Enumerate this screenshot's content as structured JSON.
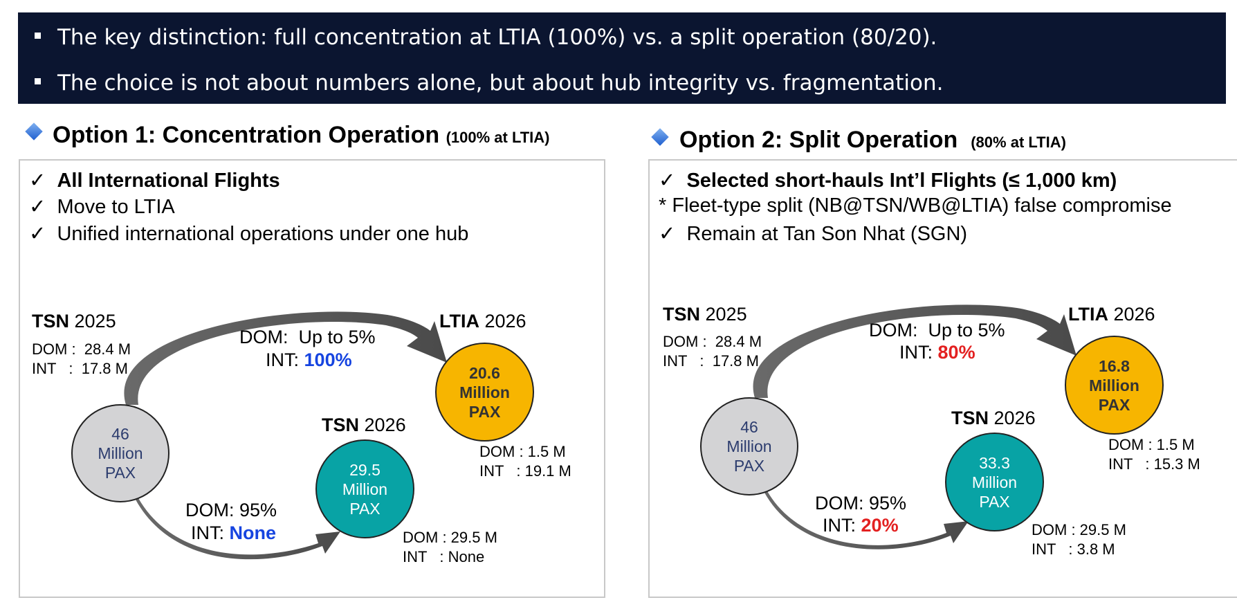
{
  "bullets": [
    "The key distinction: full concentration at LTIA (100%) vs. a split operation (80/20).",
    "The choice is not about numbers alone, but about hub integrity vs. fragmentation."
  ],
  "colors": {
    "banner": "#0b1530",
    "highlight_blue": "#1644e0",
    "highlight_red": "#e32020",
    "teal": "#08a3a5",
    "gold": "#f7b500",
    "gray": "#d3d3d5"
  },
  "option1": {
    "title": "Option 1: Concentration Operation",
    "subtitle": "(100% at LTIA)",
    "lines": [
      {
        "mark": "✓",
        "text": "All International Flights",
        "bold": true
      },
      {
        "mark": "✓",
        "text": "Move to LTIA"
      },
      {
        "mark": "✓",
        "text": "Unified international operations under one hub"
      }
    ],
    "tsn2025": {
      "name": "TSN",
      "year": "2025",
      "dom": "DOM :  28.4 M",
      "int": "INT   :  17.8 M"
    },
    "origin_circle": [
      "46",
      "Million",
      "PAX"
    ],
    "flow_top": {
      "dom": "DOM:  Up to 5%",
      "int_label": "INT:",
      "int_value": "100%"
    },
    "flow_bottom": {
      "dom": "DOM: 95%",
      "int_label": "INT:",
      "int_value": "None"
    },
    "ltia2026": {
      "name": "LTIA",
      "year": "2026",
      "circle": [
        "20.6",
        "Million",
        "PAX"
      ],
      "dom": "DOM : 1.5 M",
      "int": "INT   : 19.1 M"
    },
    "tsn2026": {
      "name": "TSN",
      "year": "2026",
      "circle": [
        "29.5",
        "Million",
        "PAX"
      ],
      "dom": "DOM : 29.5 M",
      "int": "INT   : None"
    }
  },
  "option2": {
    "title": "Option 2: Split Operation",
    "subtitle": "(80% at LTIA)",
    "lines": [
      {
        "mark": "✓",
        "text": "Selected short-hauls Int’l Flights (≤ 1,000 km)",
        "bold": true
      },
      {
        "mark": "*",
        "text": "Fleet-type split (NB@TSN/WB@LTIA) false compromise"
      },
      {
        "mark": "✓",
        "text": "Remain at Tan Son Nhat (SGN)"
      }
    ],
    "tsn2025": {
      "name": "TSN",
      "year": "2025",
      "dom": "DOM :  28.4 M",
      "int": "INT   :  17.8 M"
    },
    "origin_circle": [
      "46",
      "Million",
      "PAX"
    ],
    "flow_top": {
      "dom": "DOM:  Up to 5%",
      "int_label": "INT:",
      "int_value": "80%"
    },
    "flow_bottom": {
      "dom": "DOM: 95%",
      "int_label": "INT:",
      "int_value": "20%"
    },
    "ltia2026": {
      "name": "LTIA",
      "year": "2026",
      "circle": [
        "16.8",
        "Million",
        "PAX"
      ],
      "dom": "DOM : 1.5 M",
      "int": "INT   : 15.3 M"
    },
    "tsn2026": {
      "name": "TSN",
      "year": "2026",
      "circle": [
        "33.3",
        "Million",
        "PAX"
      ],
      "dom": "DOM : 29.5 M",
      "int": "INT   : 3.8 M"
    }
  }
}
